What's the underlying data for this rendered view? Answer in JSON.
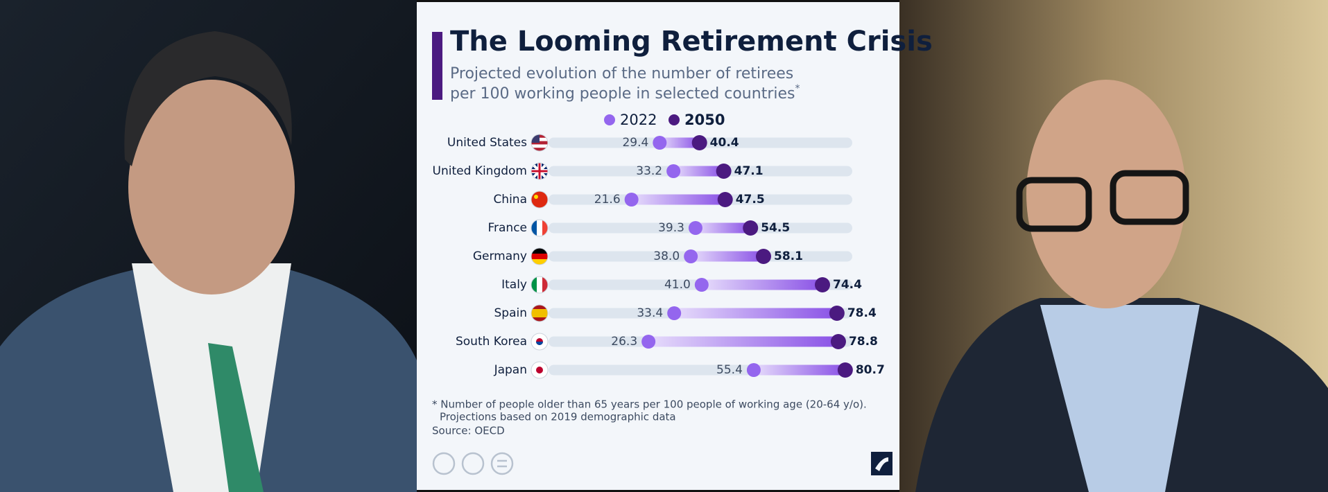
{
  "chart_data": {
    "type": "dumbbell",
    "title": "The Looming Retirement Crisis",
    "subtitle": [
      "Projected evolution of the number of retirees",
      "per 100 working people in selected countries"
    ],
    "subtitle_mark": "*",
    "categories": [
      "United States",
      "United Kingdom",
      "China",
      "France",
      "Germany",
      "Italy",
      "Spain",
      "South Korea",
      "Japan"
    ],
    "series": [
      {
        "name": "2022",
        "color": "#9466ee",
        "values": [
          29.4,
          33.2,
          21.6,
          39.3,
          38,
          41,
          33.4,
          26.3,
          55.4
        ],
        "value_labels": [
          "29.4",
          "33.2",
          "21.6",
          "39.3",
          "38.0",
          "41.0",
          "33.4",
          "26.3",
          "55.4"
        ]
      },
      {
        "name": "2050",
        "color": "#4b1a80",
        "values": [
          40.4,
          47.1,
          47.5,
          54.5,
          58.1,
          74.4,
          78.4,
          78.8,
          80.7
        ]
      }
    ],
    "notes": [
      "* Number of people older than 65 years per 100 people of working age (20-64 y/o).",
      "Projections based on 2019 demographic data"
    ],
    "source": "Source: OECD",
    "brand": "statista"
  }
}
